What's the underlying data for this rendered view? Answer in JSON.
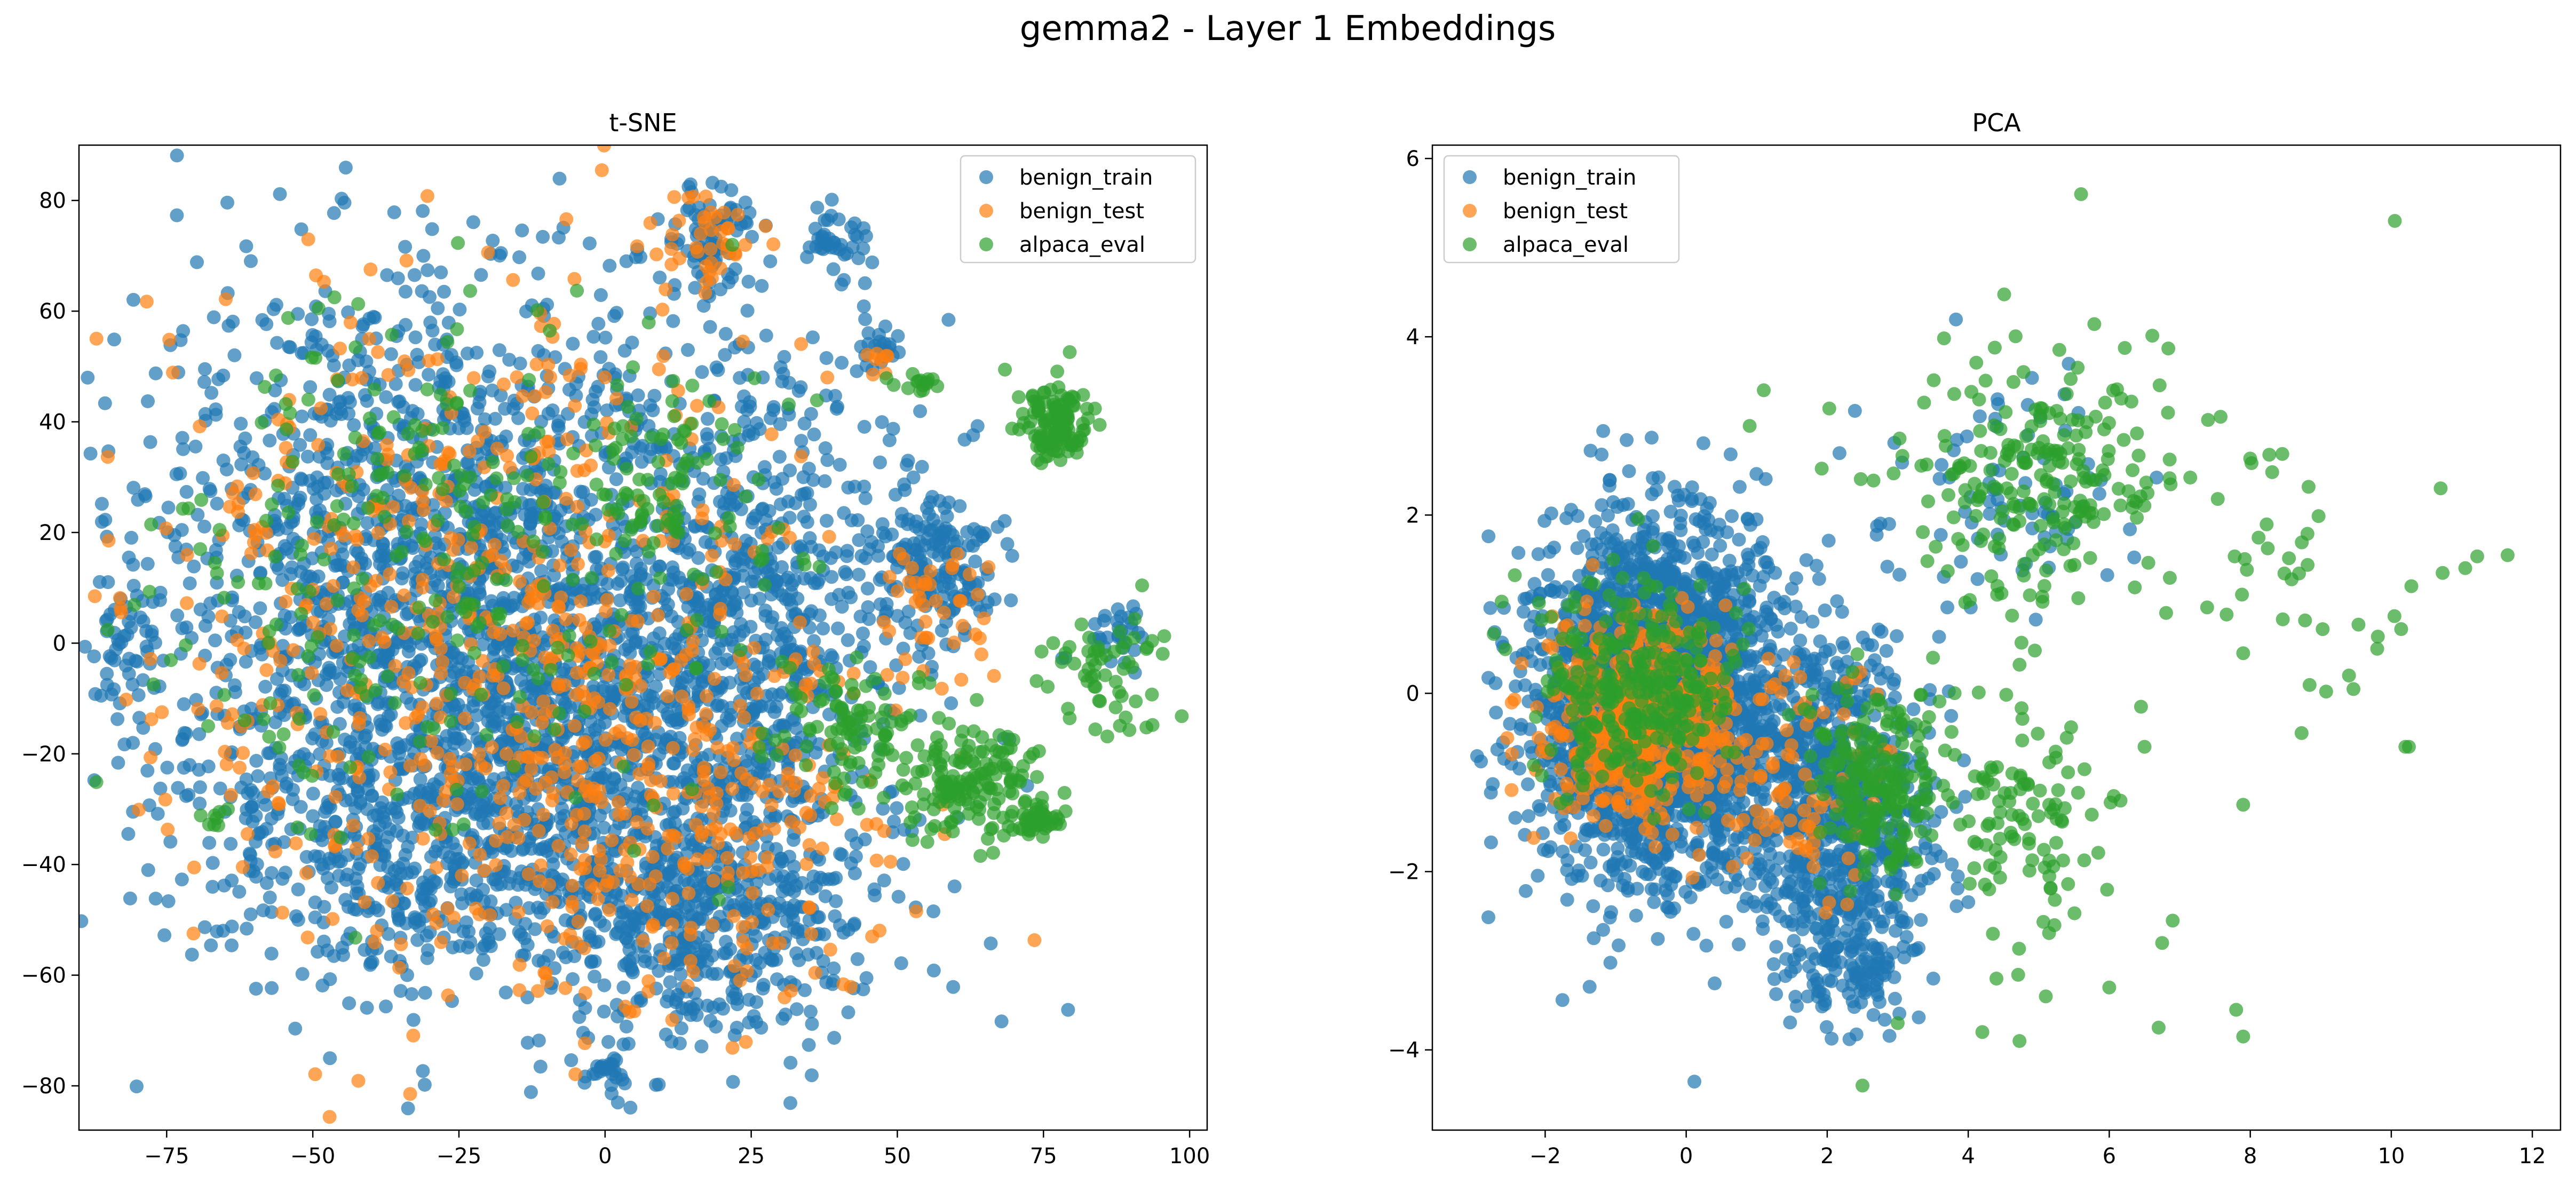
{
  "figure": {
    "title": "gemma2 - Layer 1 Embeddings"
  },
  "colors": {
    "benign_train": "#1f77b4",
    "benign_test": "#ff7f0e",
    "alpaca_eval": "#2ca02c"
  },
  "chart_data": [
    {
      "type": "scatter",
      "title": "t-SNE",
      "xlabel": "",
      "ylabel": "",
      "xlim": [
        -90,
        103
      ],
      "ylim": [
        -88,
        90
      ],
      "xticks": [
        -75,
        -50,
        -25,
        0,
        25,
        50,
        75,
        100
      ],
      "yticks": [
        -80,
        -60,
        -40,
        -20,
        0,
        20,
        40,
        60,
        80
      ],
      "xtick_labels": [
        "−75",
        "−50",
        "−25",
        "0",
        "25",
        "50",
        "75",
        "100"
      ],
      "ytick_labels": [
        "−80",
        "−60",
        "−40",
        "−20",
        "0",
        "20",
        "40",
        "60",
        "80"
      ],
      "grid": false,
      "legend": "upper right",
      "series": [
        {
          "name": "benign_train",
          "color": "#1f77b4",
          "clusters": [
            {
              "cx": -25,
              "cy": 10,
              "sx": 28,
              "sy": 30,
              "n": 1900
            },
            {
              "cx": 5,
              "cy": -25,
              "sx": 22,
              "sy": 22,
              "n": 900
            },
            {
              "cx": -35,
              "cy": -35,
              "sx": 18,
              "sy": 14,
              "n": 400
            },
            {
              "cx": 20,
              "cy": -50,
              "sx": 14,
              "sy": 10,
              "n": 300
            },
            {
              "cx": 30,
              "cy": 10,
              "sx": 12,
              "sy": 20,
              "n": 350
            },
            {
              "cx": 57,
              "cy": 15,
              "sx": 5,
              "sy": 7,
              "n": 160
            },
            {
              "cx": 18,
              "cy": 73,
              "sx": 4,
              "sy": 5,
              "n": 90
            },
            {
              "cx": 40,
              "cy": 73,
              "sx": 3,
              "sy": 3,
              "n": 40
            },
            {
              "cx": 47,
              "cy": 53,
              "sx": 2,
              "sy": 2,
              "n": 20
            },
            {
              "cx": 0,
              "cy": -77,
              "sx": 2,
              "sy": 1.6,
              "n": 25
            },
            {
              "cx": 88,
              "cy": 2,
              "sx": 4,
              "sy": 3,
              "n": 30
            },
            {
              "cx": -82,
              "cy": 0,
              "sx": 3,
              "sy": 6,
              "n": 40
            }
          ]
        },
        {
          "name": "benign_test",
          "color": "#ff7f0e",
          "clusters": [
            {
              "cx": -25,
              "cy": 5,
              "sx": 28,
              "sy": 30,
              "n": 550
            },
            {
              "cx": 10,
              "cy": -30,
              "sx": 22,
              "sy": 20,
              "n": 300
            },
            {
              "cx": 18,
              "cy": 73,
              "sx": 4,
              "sy": 5,
              "n": 40
            },
            {
              "cx": 58,
              "cy": 5,
              "sx": 5,
              "sy": 8,
              "n": 40
            },
            {
              "cx": 47,
              "cy": 53,
              "sx": 2,
              "sy": 2,
              "n": 8
            }
          ]
        },
        {
          "name": "alpaca_eval",
          "color": "#2ca02c",
          "clusters": [
            {
              "cx": -30,
              "cy": 15,
              "sx": 28,
              "sy": 25,
              "n": 300
            },
            {
              "cx": 77,
              "cy": 40,
              "sx": 2.8,
              "sy": 3.5,
              "n": 130
            },
            {
              "cx": 62,
              "cy": -25,
              "sx": 7,
              "sy": 5,
              "n": 160
            },
            {
              "cx": 42,
              "cy": -15,
              "sx": 7,
              "sy": 6,
              "n": 90
            },
            {
              "cx": 74,
              "cy": -32,
              "sx": 2.5,
              "sy": 2,
              "n": 40
            },
            {
              "cx": 86,
              "cy": -5,
              "sx": 5,
              "sy": 6,
              "n": 60
            },
            {
              "cx": 10,
              "cy": 30,
              "sx": 8,
              "sy": 8,
              "n": 70
            },
            {
              "cx": 53,
              "cy": 47,
              "sx": 2,
              "sy": 1,
              "n": 15
            },
            {
              "cx": -67,
              "cy": -32,
              "sx": 1.5,
              "sy": 1.5,
              "n": 8
            }
          ]
        }
      ]
    },
    {
      "type": "scatter",
      "title": "PCA",
      "xlabel": "",
      "ylabel": "",
      "xlim": [
        -3.6,
        12.4
      ],
      "ylim": [
        -4.9,
        6.15
      ],
      "xticks": [
        -2,
        0,
        2,
        4,
        6,
        8,
        10,
        12
      ],
      "yticks": [
        -4,
        -2,
        0,
        2,
        4,
        6
      ],
      "xtick_labels": [
        "−2",
        "0",
        "2",
        "4",
        "6",
        "8",
        "10",
        "12"
      ],
      "ytick_labels": [
        "−4",
        "−2",
        "0",
        "2",
        "4",
        "6"
      ],
      "grid": false,
      "legend": "upper left",
      "series": [
        {
          "name": "benign_train",
          "color": "#1f77b4",
          "clusters": [
            {
              "cx": -0.4,
              "cy": -0.1,
              "sx": 0.85,
              "sy": 0.95,
              "n": 2500
            },
            {
              "cx": 2.1,
              "cy": -1.2,
              "sx": 0.7,
              "sy": 0.9,
              "n": 700
            },
            {
              "cx": 2.3,
              "cy": -3.0,
              "sx": 0.5,
              "sy": 0.4,
              "n": 130
            },
            {
              "cx": 4.7,
              "cy": 2.3,
              "sx": 0.8,
              "sy": 0.6,
              "n": 80
            }
          ]
        },
        {
          "name": "benign_test",
          "color": "#ff7f0e",
          "clusters": [
            {
              "cx": -0.6,
              "cy": -0.3,
              "sx": 0.7,
              "sy": 0.55,
              "n": 550
            },
            {
              "cx": 1.6,
              "cy": -1.0,
              "sx": 0.6,
              "sy": 0.7,
              "n": 80
            }
          ]
        },
        {
          "name": "alpaca_eval",
          "color": "#2ca02c",
          "clusters": [
            {
              "cx": -0.7,
              "cy": 0.1,
              "sx": 0.7,
              "sy": 0.6,
              "n": 320
            },
            {
              "cx": 2.7,
              "cy": -1.0,
              "sx": 0.4,
              "sy": 0.5,
              "n": 220
            },
            {
              "cx": 4.8,
              "cy": -1.4,
              "sx": 0.6,
              "sy": 0.65,
              "n": 110
            },
            {
              "cx": 5.0,
              "cy": 2.5,
              "sx": 1.1,
              "sy": 0.7,
              "n": 220
            },
            {
              "cx": 8.5,
              "cy": 1.3,
              "sx": 1.3,
              "sy": 1.0,
              "n": 45
            }
          ],
          "points": [
            [
              5.6,
              5.6
            ],
            [
              10.05,
              5.3
            ],
            [
              11.65,
              1.55
            ],
            [
              10.7,
              2.3
            ],
            [
              10.2,
              -0.6
            ],
            [
              10.25,
              -0.6
            ],
            [
              7.9,
              -3.85
            ],
            [
              7.8,
              -3.55
            ],
            [
              7.9,
              -1.25
            ],
            [
              6.7,
              -3.75
            ],
            [
              6.75,
              -2.8
            ],
            [
              6.0,
              -3.3
            ],
            [
              6.9,
              -2.55
            ],
            [
              9.4,
              0.2
            ],
            [
              6.45,
              -0.15
            ],
            [
              6.5,
              -0.6
            ],
            [
              7.9,
              0.45
            ],
            [
              9.8,
              0.5
            ],
            [
              3.5,
              0.4
            ],
            [
              3.0,
              -3.7
            ],
            [
              4.4,
              -3.2
            ],
            [
              5.1,
              -3.4
            ],
            [
              1.1,
              3.4
            ],
            [
              0.9,
              3.0
            ],
            [
              4.2,
              -3.8
            ],
            [
              2.5,
              -4.4
            ]
          ]
        }
      ]
    }
  ]
}
